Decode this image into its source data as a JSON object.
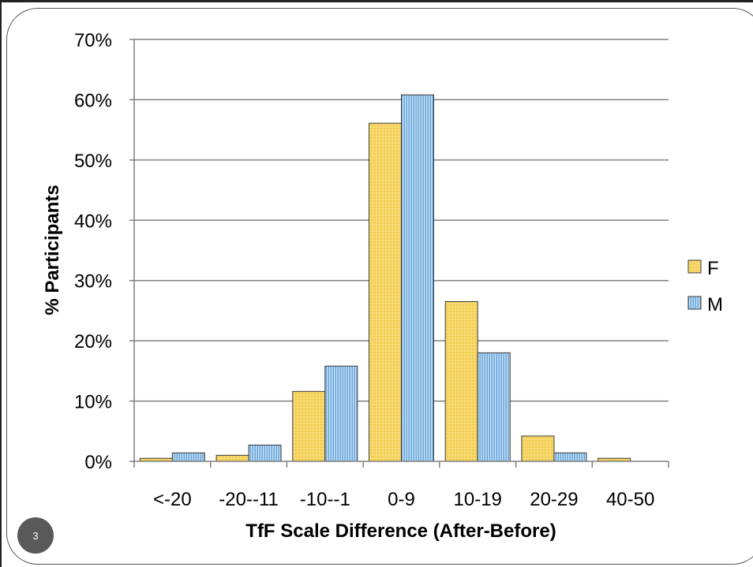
{
  "slide": {
    "number": "3"
  },
  "colors": {
    "F": "#f7d564",
    "M": "#8fc1ea",
    "grid": "#808080"
  },
  "chart_data": {
    "type": "bar",
    "xlabel": "TfF Scale Difference (After-Before)",
    "ylabel": "% Participants",
    "ylim": [
      0,
      0.7
    ],
    "yticks": [
      {
        "value": 0.0,
        "label": "0%"
      },
      {
        "value": 0.1,
        "label": "10%"
      },
      {
        "value": 0.2,
        "label": "20%"
      },
      {
        "value": 0.3,
        "label": "30%"
      },
      {
        "value": 0.4,
        "label": "40%"
      },
      {
        "value": 0.5,
        "label": "50%"
      },
      {
        "value": 0.6,
        "label": "60%"
      },
      {
        "value": 0.7,
        "label": "70%"
      }
    ],
    "categories": [
      "<-20",
      "-20--11",
      "-10--1",
      "0-9",
      "10-19",
      "20-29",
      "40-50"
    ],
    "series": [
      {
        "name": "F",
        "values": [
          0.005,
          0.01,
          0.116,
          0.561,
          0.265,
          0.042,
          0.005
        ]
      },
      {
        "name": "M",
        "values": [
          0.014,
          0.027,
          0.158,
          0.608,
          0.18,
          0.014,
          0.0
        ]
      }
    ],
    "grid": true,
    "legend": "right"
  }
}
